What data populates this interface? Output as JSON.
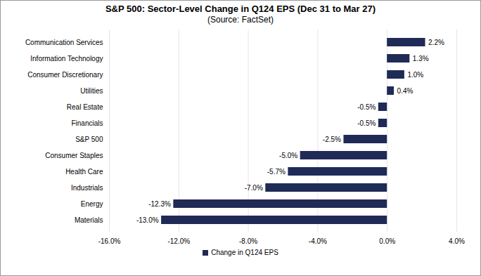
{
  "chart_data": {
    "type": "bar",
    "orientation": "horizontal",
    "title": "S&P 500: Sector-Level Change in Q124 EPS (Dec 31 to Mar 27)",
    "subtitle": "(Source: FactSet)",
    "categories": [
      "Communication Services",
      "Information Technology",
      "Consumer Discretionary",
      "Utilities",
      "Real Estate",
      "Financials",
      "S&P 500",
      "Consumer Staples",
      "Health Care",
      "Industrials",
      "Energy",
      "Materials"
    ],
    "series": [
      {
        "name": "Change in Q124 EPS",
        "color": "#1f2a56",
        "values": [
          2.2,
          1.3,
          1.0,
          0.4,
          -0.5,
          -0.5,
          -2.5,
          -5.0,
          -5.7,
          -7.0,
          -12.3,
          -13.0
        ],
        "value_labels": [
          "2.2%",
          "1.3%",
          "1.0%",
          "0.4%",
          "-0.5%",
          "-0.5%",
          "-2.5%",
          "-5.0%",
          "-5.7%",
          "-7.0%",
          "-12.3%",
          "-13.0%"
        ]
      }
    ],
    "xlim": [
      -16,
      4
    ],
    "xticks": [
      {
        "value": -16,
        "label": "-16.0%"
      },
      {
        "value": -12,
        "label": "-12.0%"
      },
      {
        "value": -8,
        "label": "-8.0%"
      },
      {
        "value": -4,
        "label": "-4.0%"
      },
      {
        "value": 0,
        "label": "0.0%"
      },
      {
        "value": 4,
        "label": "4.0%"
      }
    ],
    "grid": true,
    "data_labels": true,
    "legend": "bottom"
  }
}
